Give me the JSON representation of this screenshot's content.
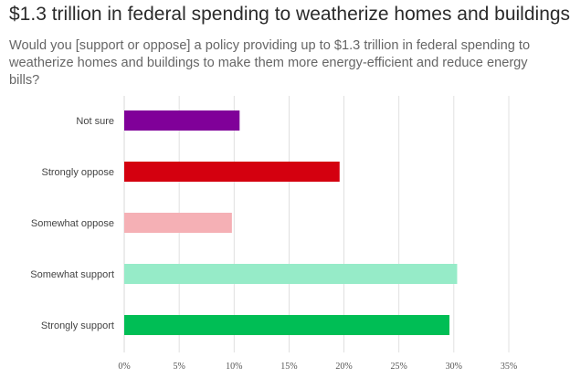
{
  "title": "$1.3 trillion in federal spending to weatherize homes and buildings",
  "subtitle": "Would you [support or oppose] a policy providing up to $1.3 trillion in federal spending to weatherize homes and buildings to make them more energy-efficient and reduce energy bills?",
  "chart_data": {
    "type": "bar",
    "orientation": "horizontal",
    "title": "$1.3 trillion in federal spending to weatherize homes and buildings",
    "subtitle": "Would you [support or oppose] a policy providing up to $1.3 trillion in federal spending to weatherize homes and buildings to make them more energy-efficient and reduce energy bills?",
    "categories": [
      "Not sure",
      "Strongly oppose",
      "Somewhat oppose",
      "Somewhat support",
      "Strongly support"
    ],
    "values": [
      10.5,
      19.6,
      9.8,
      30.3,
      29.6
    ],
    "colors": [
      "#800099",
      "#d4000f",
      "#f5b0b5",
      "#96ebc8",
      "#00be55"
    ],
    "x_ticks": [
      "0%",
      "5%",
      "10%",
      "15%",
      "20%",
      "25%",
      "30%",
      "35%"
    ],
    "xlim": [
      0,
      35
    ],
    "xlabel": "",
    "ylabel": "",
    "grid": "vertical",
    "legend": "none",
    "gridline_color": "#d9d9d9"
  }
}
